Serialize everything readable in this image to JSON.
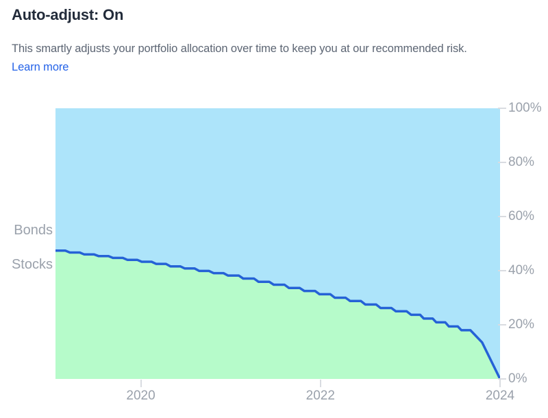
{
  "header": {
    "title": "Auto-adjust: On",
    "description": "This smartly adjusts your portfolio allocation over time to keep you at our recommended risk.",
    "learn_more_label": "Learn more"
  },
  "colors": {
    "bonds_fill": "#ade4fa",
    "stocks_fill": "#b6fbca",
    "line": "#2562d6",
    "axis_text": "#9aa1ab",
    "tick": "#d9dce1",
    "title_text": "#222b3a",
    "body_text": "#5c6573",
    "link": "#2563e8"
  },
  "chart_data": {
    "type": "area",
    "title": "",
    "labels": {
      "bonds": "Bonds",
      "stocks": "Stocks"
    },
    "legend_position": "left-inside",
    "grid": false,
    "x_range": [
      2019.05,
      2024.0
    ],
    "y_range": [
      0,
      100
    ],
    "x_ticks": [
      2020,
      2022,
      2024
    ],
    "x_tick_labels": [
      "2020",
      "2022",
      "2024"
    ],
    "y_tick_values": [
      0,
      20,
      40,
      60,
      80,
      100
    ],
    "y_tick_labels": [
      "0%",
      "20%",
      "40%",
      "60%",
      "80%",
      "100%"
    ],
    "series_note": "stocks_points = [year, stocks %]; green area below line is Stocks, blue area above line is Bonds (100 - stocks)",
    "stocks_points": [
      [
        2019.05,
        47.4
      ],
      [
        2019.16,
        47.4
      ],
      [
        2019.21,
        46.7
      ],
      [
        2019.32,
        46.7
      ],
      [
        2019.37,
        46.0
      ],
      [
        2019.48,
        46.0
      ],
      [
        2019.53,
        45.4
      ],
      [
        2019.64,
        45.4
      ],
      [
        2019.69,
        44.7
      ],
      [
        2019.8,
        44.7
      ],
      [
        2019.85,
        44.0
      ],
      [
        2019.96,
        44.0
      ],
      [
        2020.01,
        43.3
      ],
      [
        2020.12,
        43.3
      ],
      [
        2020.17,
        42.5
      ],
      [
        2020.28,
        42.5
      ],
      [
        2020.33,
        41.6
      ],
      [
        2020.44,
        41.6
      ],
      [
        2020.49,
        40.8
      ],
      [
        2020.6,
        40.8
      ],
      [
        2020.65,
        39.9
      ],
      [
        2020.76,
        39.9
      ],
      [
        2020.81,
        39.1
      ],
      [
        2020.92,
        39.1
      ],
      [
        2020.97,
        38.2
      ],
      [
        2021.09,
        38.2
      ],
      [
        2021.14,
        37.1
      ],
      [
        2021.26,
        37.1
      ],
      [
        2021.31,
        35.9
      ],
      [
        2021.43,
        35.9
      ],
      [
        2021.48,
        34.8
      ],
      [
        2021.6,
        34.8
      ],
      [
        2021.65,
        33.6
      ],
      [
        2021.77,
        33.6
      ],
      [
        2021.82,
        32.5
      ],
      [
        2021.94,
        32.5
      ],
      [
        2021.99,
        31.3
      ],
      [
        2022.11,
        31.3
      ],
      [
        2022.16,
        30.0
      ],
      [
        2022.28,
        30.0
      ],
      [
        2022.33,
        28.8
      ],
      [
        2022.45,
        28.8
      ],
      [
        2022.5,
        27.5
      ],
      [
        2022.62,
        27.5
      ],
      [
        2022.67,
        26.2
      ],
      [
        2022.79,
        26.2
      ],
      [
        2022.84,
        25.0
      ],
      [
        2022.96,
        25.0
      ],
      [
        2023.01,
        23.7
      ],
      [
        2023.11,
        23.7
      ],
      [
        2023.15,
        22.3
      ],
      [
        2023.25,
        22.3
      ],
      [
        2023.29,
        20.9
      ],
      [
        2023.39,
        20.9
      ],
      [
        2023.43,
        19.4
      ],
      [
        2023.53,
        19.4
      ],
      [
        2023.57,
        18.0
      ],
      [
        2023.67,
        18.0
      ],
      [
        2023.71,
        16.6
      ],
      [
        2023.8,
        13.5
      ],
      [
        2024.0,
        0.0
      ]
    ]
  }
}
